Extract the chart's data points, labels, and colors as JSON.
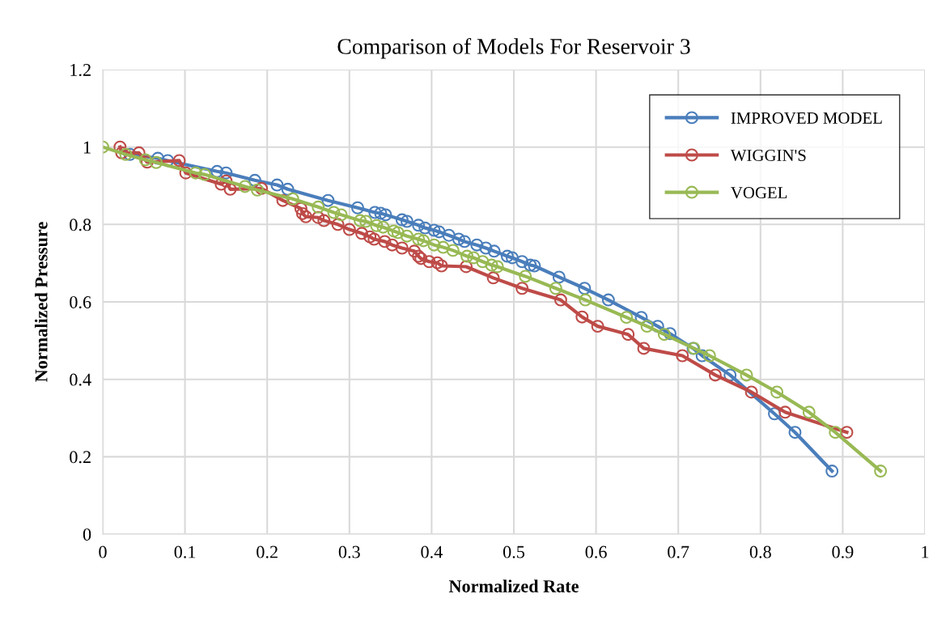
{
  "chart_data": {
    "type": "line",
    "title": "Comparison of Models For Reservoir 3",
    "xlabel": "Normalized Rate",
    "ylabel": "Normalized Pressure",
    "xlim": [
      0,
      1
    ],
    "xticks": [
      0,
      0.1,
      0.2,
      0.3,
      0.4,
      0.5,
      0.6,
      0.7,
      0.8,
      0.9,
      1
    ],
    "ylim": [
      0,
      1.2
    ],
    "yticks": [
      0,
      0.2,
      0.4,
      0.6,
      0.8,
      1,
      1.2
    ],
    "grid": true,
    "legend": "top right",
    "marker": "circle",
    "line_style": "solid",
    "series": [
      {
        "name": "IMPROVED MODEL",
        "color": "#4a7ebb",
        "x": [
          0.033,
          0.067,
          0.079,
          0.139,
          0.15,
          0.185,
          0.212,
          0.225,
          0.274,
          0.31,
          0.331,
          0.338,
          0.344,
          0.364,
          0.37,
          0.384,
          0.392,
          0.403,
          0.409,
          0.421,
          0.433,
          0.44,
          0.455,
          0.466,
          0.476,
          0.492,
          0.498,
          0.51,
          0.52,
          0.525,
          0.555,
          0.586,
          0.615,
          0.655,
          0.675,
          0.69,
          0.718,
          0.729,
          0.763,
          0.817,
          0.842,
          0.887
        ],
        "values": [
          0.981,
          0.971,
          0.965,
          0.937,
          0.933,
          0.914,
          0.902,
          0.891,
          0.862,
          0.843,
          0.831,
          0.829,
          0.825,
          0.812,
          0.808,
          0.798,
          0.791,
          0.785,
          0.781,
          0.772,
          0.762,
          0.756,
          0.747,
          0.739,
          0.731,
          0.718,
          0.714,
          0.704,
          0.695,
          0.693,
          0.664,
          0.635,
          0.605,
          0.56,
          0.537,
          0.518,
          0.48,
          0.461,
          0.411,
          0.311,
          0.263,
          0.163
        ]
      },
      {
        "name": "WIGGIN'S",
        "color": "#be4b48",
        "x": [
          0.021,
          0.023,
          0.044,
          0.054,
          0.093,
          0.101,
          0.144,
          0.15,
          0.155,
          0.193,
          0.219,
          0.241,
          0.243,
          0.247,
          0.262,
          0.269,
          0.286,
          0.3,
          0.315,
          0.325,
          0.33,
          0.343,
          0.352,
          0.364,
          0.379,
          0.384,
          0.387,
          0.397,
          0.407,
          0.412,
          0.442,
          0.475,
          0.51,
          0.557,
          0.583,
          0.602,
          0.639,
          0.658,
          0.705,
          0.745,
          0.789,
          0.83,
          0.905
        ],
        "values": [
          1.0,
          0.985,
          0.985,
          0.961,
          0.965,
          0.933,
          0.904,
          0.912,
          0.891,
          0.893,
          0.862,
          0.841,
          0.828,
          0.82,
          0.818,
          0.81,
          0.8,
          0.787,
          0.777,
          0.768,
          0.762,
          0.756,
          0.747,
          0.739,
          0.731,
          0.718,
          0.712,
          0.704,
          0.701,
          0.693,
          0.691,
          0.662,
          0.635,
          0.605,
          0.561,
          0.537,
          0.516,
          0.48,
          0.461,
          0.411,
          0.367,
          0.315,
          0.263
        ]
      },
      {
        "name": "VOGEL",
        "color": "#98b954",
        "x": [
          0,
          0.028,
          0.052,
          0.065,
          0.113,
          0.124,
          0.173,
          0.188,
          0.231,
          0.262,
          0.281,
          0.29,
          0.313,
          0.32,
          0.333,
          0.341,
          0.354,
          0.359,
          0.37,
          0.384,
          0.39,
          0.403,
          0.414,
          0.426,
          0.443,
          0.451,
          0.462,
          0.473,
          0.48,
          0.514,
          0.551,
          0.587,
          0.637,
          0.662,
          0.683,
          0.719,
          0.738,
          0.783,
          0.82,
          0.859,
          0.891,
          0.946
        ],
        "values": [
          1.0,
          0.981,
          0.967,
          0.96,
          0.933,
          0.929,
          0.898,
          0.889,
          0.866,
          0.845,
          0.831,
          0.825,
          0.81,
          0.808,
          0.797,
          0.793,
          0.783,
          0.779,
          0.77,
          0.762,
          0.758,
          0.747,
          0.741,
          0.733,
          0.718,
          0.714,
          0.704,
          0.695,
          0.691,
          0.666,
          0.635,
          0.605,
          0.56,
          0.537,
          0.516,
          0.48,
          0.461,
          0.411,
          0.367,
          0.315,
          0.263,
          0.163
        ]
      }
    ]
  }
}
